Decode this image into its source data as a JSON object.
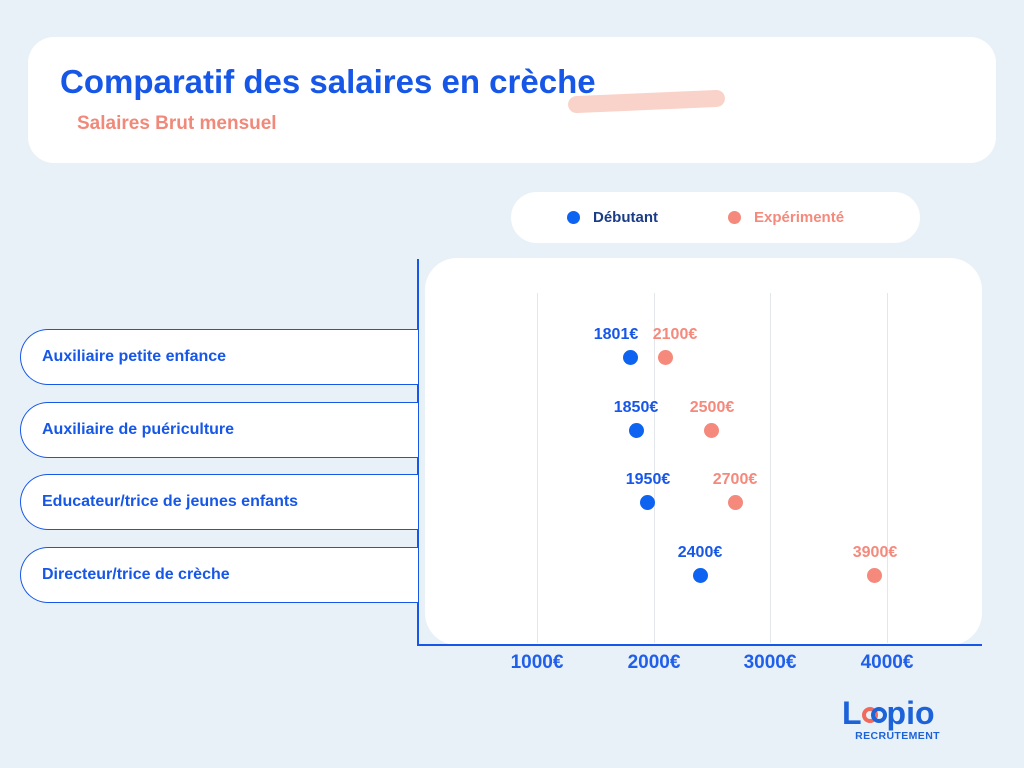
{
  "page": {
    "background": "#e9f1f8"
  },
  "header": {
    "title": "Comparatif des salaires en crèche",
    "subtitle": "Salaires Brut mensuel",
    "title_color": "#1757e8",
    "subtitle_color": "#f0897a",
    "highlight_color": "#f9d2c9"
  },
  "legend": {
    "items": [
      {
        "label": "Débutant",
        "dot_color": "#0e64f1",
        "text_color": "#1a3c87"
      },
      {
        "label": "Expérimenté",
        "dot_color": "#f4897c",
        "text_color": "#f4897c"
      }
    ]
  },
  "chart_data": {
    "type": "scatter",
    "orientation": "horizontal",
    "title": "Comparatif des salaires en crèche",
    "subtitle": "Salaires Brut mensuel",
    "unit": "€",
    "categories": [
      "Auxiliaire petite enfance",
      "Auxiliaire de puériculture",
      "Educateur/trice de jeunes enfants",
      "Directeur/trice de crèche"
    ],
    "series": [
      {
        "name": "Débutant",
        "color": "#0e64f1",
        "label_color": "#1757e8",
        "values": [
          1801,
          1850,
          1950,
          2400
        ]
      },
      {
        "name": "Expérimenté",
        "color": "#f4897c",
        "label_color": "#f4897c",
        "values": [
          2100,
          2500,
          2700,
          3900
        ]
      }
    ],
    "x_ticks": [
      1000,
      2000,
      3000,
      4000
    ],
    "xlim": [
      0,
      4830
    ],
    "grid": "vertical-lines",
    "legend_position": "top-right",
    "label_offsets": {
      "0": {
        "0": -14,
        "1": 10
      }
    }
  },
  "logo": {
    "word_prefix": "L",
    "word_suffix": "pio",
    "tagline": "RECRUTEMENT",
    "blue": "#1c63d9",
    "coral": "#f0695c"
  }
}
